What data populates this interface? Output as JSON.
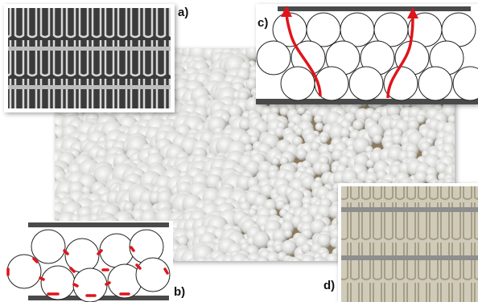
{
  "labels": {
    "a": "a)",
    "b": "b)",
    "c": "c)",
    "d": "d)"
  }
}
